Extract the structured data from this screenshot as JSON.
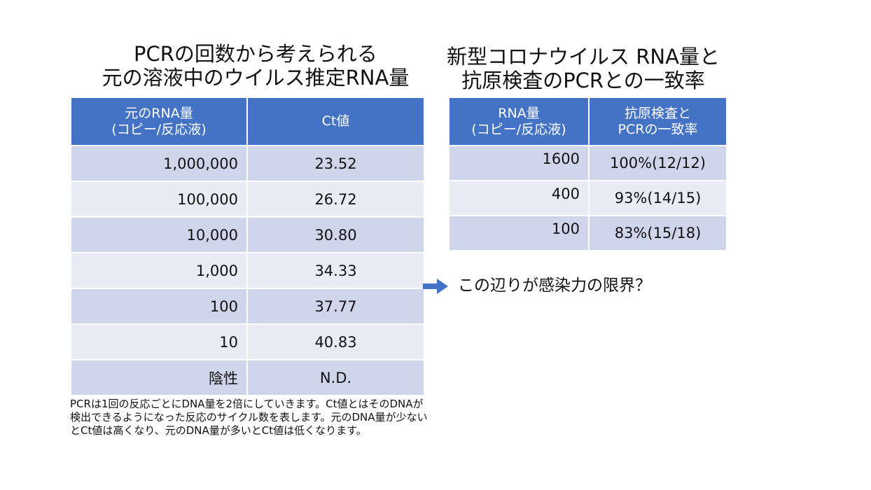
{
  "left_title": {
    "line1": "PCRの回数から考えられる",
    "line2": "元の溶液中のウイルス推定RNA量"
  },
  "left_table": {
    "headers": [
      "元のRNA量\n(コピー/反応液)",
      "Ct値"
    ],
    "header1_line1": "元のRNA量",
    "header1_line2": "(コピー/反応液)",
    "header2": "Ct値",
    "rows": [
      {
        "rna": "1,000,000",
        "ct": "23.52"
      },
      {
        "rna": "100,000",
        "ct": "26.72"
      },
      {
        "rna": "10,000",
        "ct": "30.80"
      },
      {
        "rna": "1,000",
        "ct": "34.33"
      },
      {
        "rna": "100",
        "ct": "37.77"
      },
      {
        "rna": "10",
        "ct": "40.83"
      },
      {
        "rna": "陰性",
        "ct": "N.D."
      }
    ]
  },
  "right_title": {
    "line1": "新型コロナウイルス RNA量と",
    "line2": "抗原検査のPCRとの一致率"
  },
  "right_table": {
    "header1_line1": "RNA量",
    "header1_line2": "(コピー/反応液)",
    "header2_line1": "抗原検査と",
    "header2_line2": "PCRの一致率",
    "rows": [
      {
        "rna": "1600",
        "rate": "100%(12/12)"
      },
      {
        "rna": "400",
        "rate": "93%(14/15)"
      },
      {
        "rna": "100",
        "rate": "83%(15/18)"
      }
    ]
  },
  "callout": {
    "text": "この辺りが感染力の限界？",
    "arrow_icon": "right-arrow-icon",
    "arrow_color": "#4472c4"
  },
  "footnote": {
    "line1": "PCRは1回の反応ごとにDNA量を2倍にしていきます。Ct値とはそのDNAが",
    "line2": "検出できるようになった反応のサイクル数を表します。元のDNA量が少ない",
    "line3": "とCt値は高くなり、元のDNA量が多いとCt値は低くなります。"
  },
  "colors": {
    "header_bg": "#4472c4",
    "row_odd": "#cfd5ea",
    "row_even": "#e9ebf5"
  }
}
